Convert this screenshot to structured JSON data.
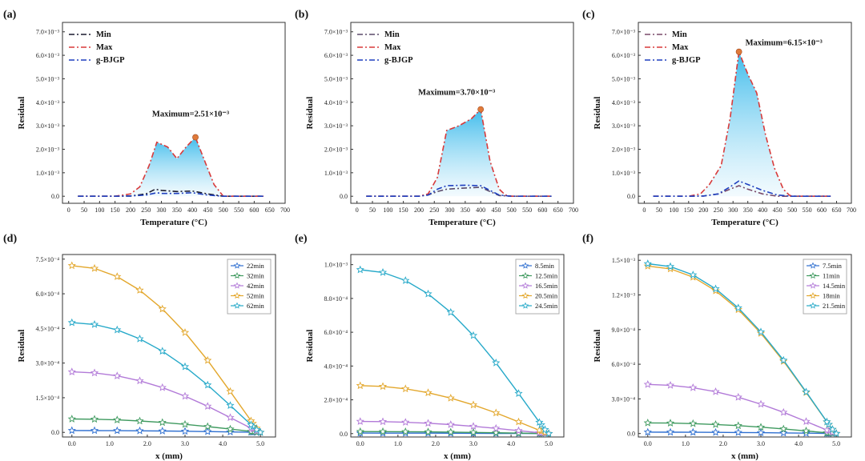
{
  "chart_data": [
    {
      "panel": "(a)",
      "type": "line",
      "xlabel": "Temperature (°C)",
      "ylabel": "Residual",
      "xlim": [
        -20,
        700
      ],
      "ylim": [
        -0.0003,
        0.0074
      ],
      "xticks": [
        "0",
        "50",
        "100",
        "150",
        "200",
        "250",
        "300",
        "350",
        "400",
        "450",
        "500",
        "550",
        "600",
        "650",
        "700"
      ],
      "yticks": [
        "0.0",
        "1.0×10⁻³",
        "2.0×10⁻³",
        "3.0×10⁻³",
        "4.0×10⁻³",
        "5.0×10⁻³",
        "6.0×10⁻³",
        "7.0×10⁻³"
      ],
      "legend_position": "top-left",
      "fill_between": true,
      "annotation": "Maximum=2.51×10⁻³",
      "max_point": [
        410,
        0.00251
      ],
      "series": [
        {
          "name": "Min",
          "color": "#1a1a2e",
          "dash": "7,3,2,3",
          "x": [
            30,
            100,
            150,
            200,
            250,
            280,
            300,
            350,
            400,
            450,
            500,
            550,
            600,
            630
          ],
          "y": [
            0,
            0,
            0,
            1e-05,
            0.0001,
            0.0003,
            0.00025,
            0.0002,
            0.00022,
            0.0001,
            0,
            0,
            0,
            0
          ]
        },
        {
          "name": "Max",
          "color": "#d83a3a",
          "dash": "7,3,2,3",
          "x": [
            30,
            100,
            150,
            200,
            230,
            260,
            285,
            320,
            350,
            380,
            410,
            440,
            470,
            500,
            550,
            600,
            630
          ],
          "y": [
            0,
            0,
            0,
            0.0001,
            0.0004,
            0.0013,
            0.0023,
            0.0021,
            0.0016,
            0.0021,
            0.00251,
            0.0015,
            0.0005,
            0,
            0,
            0,
            0
          ]
        },
        {
          "name": "g-BJGP",
          "color": "#1f3fbf",
          "dash": "7,3,2,3",
          "x": [
            30,
            100,
            150,
            200,
            250,
            285,
            300,
            350,
            400,
            450,
            500,
            550,
            600,
            630
          ],
          "y": [
            0,
            0,
            0,
            1e-05,
            5e-05,
            0.00015,
            0.00012,
            0.00012,
            0.00015,
            5e-05,
            0,
            0,
            0,
            0
          ]
        }
      ]
    },
    {
      "panel": "(b)",
      "type": "line",
      "xlabel": "Temperature (°C)",
      "ylabel": "Residual",
      "xlim": [
        -20,
        700
      ],
      "ylim": [
        -0.0003,
        0.0074
      ],
      "xticks": [
        "0",
        "50",
        "100",
        "150",
        "200",
        "250",
        "300",
        "350",
        "400",
        "450",
        "500",
        "550",
        "600",
        "650",
        "700"
      ],
      "yticks": [
        "0.0",
        "1.0×10⁻³",
        "2.0×10⁻³",
        "3.0×10⁻³",
        "4.0×10⁻³",
        "5.0×10⁻³",
        "6.0×10⁻³",
        "7.0×10⁻³"
      ],
      "legend_position": "top-left",
      "fill_between": true,
      "annotation": "Maximum=3.70×10⁻³",
      "max_point": [
        400,
        0.0037
      ],
      "series": [
        {
          "name": "Min",
          "color": "#5a4a6a",
          "dash": "7,3,2,3",
          "x": [
            30,
            100,
            150,
            200,
            230,
            260,
            290,
            350,
            400,
            430,
            460,
            500,
            550,
            600,
            630
          ],
          "y": [
            0,
            0,
            0,
            0,
            5e-05,
            0.0002,
            0.0003,
            0.00035,
            0.00038,
            0.0002,
            3e-05,
            0,
            0,
            0,
            0
          ]
        },
        {
          "name": "Max",
          "color": "#d83a3a",
          "dash": "7,3,2,3",
          "x": [
            30,
            100,
            150,
            200,
            230,
            260,
            290,
            330,
            370,
            400,
            430,
            460,
            480,
            500,
            550,
            600,
            630
          ],
          "y": [
            0,
            0,
            0,
            0,
            0.0001,
            0.0008,
            0.0028,
            0.003,
            0.0033,
            0.0037,
            0.0015,
            0.0003,
            5e-05,
            0,
            0,
            0,
            0
          ]
        },
        {
          "name": "g-BJGP",
          "color": "#1f3fbf",
          "dash": "7,3,2,3",
          "x": [
            30,
            100,
            150,
            200,
            230,
            260,
            290,
            350,
            400,
            430,
            460,
            500,
            550,
            600,
            630
          ],
          "y": [
            0,
            0,
            0,
            0,
            5e-05,
            0.0003,
            0.00045,
            0.00047,
            0.00045,
            0.00025,
            5e-05,
            0,
            0,
            0,
            0
          ]
        }
      ]
    },
    {
      "panel": "(c)",
      "type": "line",
      "xlabel": "Temperature (°C)",
      "ylabel": "Residual",
      "xlim": [
        -20,
        700
      ],
      "ylim": [
        -0.0003,
        0.0074
      ],
      "xticks": [
        "0",
        "50",
        "100",
        "150",
        "200",
        "250",
        "300",
        "350",
        "400",
        "450",
        "500",
        "550",
        "600",
        "650",
        "700"
      ],
      "yticks": [
        "0.0",
        "1.0×10⁻³",
        "2.0×10⁻³",
        "3.0×10⁻³",
        "4.0×10⁻³",
        "5.0×10⁻³",
        "6.0×10⁻³",
        "7.0×10⁻³"
      ],
      "legend_position": "top-left",
      "fill_between": true,
      "annotation": "Maximum=6.15×10⁻³",
      "max_point": [
        320,
        0.00615
      ],
      "series": [
        {
          "name": "Min",
          "color": "#7a4a6a",
          "dash": "7,3,2,3",
          "x": [
            30,
            100,
            150,
            200,
            250,
            290,
            320,
            350,
            400,
            450,
            500,
            550,
            600,
            630
          ],
          "y": [
            0,
            0,
            0,
            1e-05,
            0.0001,
            0.0003,
            0.00045,
            0.0003,
            0.0001,
            0,
            0,
            0,
            0,
            0
          ]
        },
        {
          "name": "Max",
          "color": "#d83a3a",
          "dash": "7,3,2,3",
          "x": [
            30,
            100,
            150,
            190,
            220,
            260,
            290,
            320,
            350,
            380,
            410,
            440,
            470,
            490,
            500,
            550,
            600,
            630
          ],
          "y": [
            0,
            0,
            0,
            0.0001,
            0.0005,
            0.0013,
            0.0033,
            0.00615,
            0.0052,
            0.0044,
            0.0026,
            0.0012,
            0.0003,
            5e-05,
            0,
            0,
            0,
            0
          ]
        },
        {
          "name": "g-BJGP",
          "color": "#1f3fbf",
          "dash": "7,3,2,3",
          "x": [
            30,
            100,
            150,
            200,
            250,
            290,
            320,
            350,
            400,
            450,
            500,
            550,
            600,
            630
          ],
          "y": [
            0,
            0,
            0,
            1e-05,
            0.0001,
            0.0004,
            0.00065,
            0.0005,
            0.00025,
            5e-05,
            0,
            0,
            0,
            0
          ]
        }
      ]
    },
    {
      "panel": "(d)",
      "type": "line",
      "xlabel": "x (mm)",
      "ylabel": "Residual",
      "xlim": [
        -0.25,
        5.4
      ],
      "ylim": [
        -2e-05,
        0.00077
      ],
      "xticks": [
        "0.0",
        "1.0",
        "2.0",
        "3.0",
        "4.0",
        "5.0"
      ],
      "yticks": [
        "0.0",
        "1.5×10⁻⁴",
        "3.0×10⁻⁴",
        "4.5×10⁻⁴",
        "6.0×10⁻⁴",
        "7.5×10⁻⁴"
      ],
      "legend_position": "top-right",
      "series": [
        {
          "name": "22min",
          "color": "#2e6fd0",
          "peak": 8e-06
        },
        {
          "name": "32min",
          "color": "#3f9a5f",
          "peak": 5.8e-05
        },
        {
          "name": "42min",
          "color": "#b27ad8",
          "peak": 0.000262
        },
        {
          "name": "52min",
          "color": "#e3a72c",
          "peak": 0.000722
        },
        {
          "name": "62min",
          "color": "#26a9c9",
          "peak": 0.000475
        }
      ]
    },
    {
      "panel": "(e)",
      "type": "line",
      "xlabel": "x (mm)",
      "ylabel": "Residual",
      "xlim": [
        -0.25,
        5.4
      ],
      "ylim": [
        -2e-05,
        0.00106
      ],
      "xticks": [
        "0.0",
        "1.0",
        "2.0",
        "3.0",
        "4.0",
        "5.0"
      ],
      "yticks": [
        "0.0",
        "2.0×10⁻⁴",
        "4.0×10⁻⁴",
        "6.0×10⁻⁴",
        "8.0×10⁻⁴",
        "1.0×10⁻³"
      ],
      "legend_position": "top-right",
      "series": [
        {
          "name": "8.5min",
          "color": "#2e6fd0",
          "peak": 3e-06
        },
        {
          "name": "12.5min",
          "color": "#3f9a5f",
          "peak": 1.2e-05
        },
        {
          "name": "16.5min",
          "color": "#b27ad8",
          "peak": 7.2e-05
        },
        {
          "name": "20.5min",
          "color": "#e3a72c",
          "peak": 0.000284
        },
        {
          "name": "24.5min",
          "color": "#26a9c9",
          "peak": 0.00097
        }
      ]
    },
    {
      "panel": "(f)",
      "type": "line",
      "xlabel": "x (mm)",
      "ylabel": "Residual",
      "xlim": [
        -0.25,
        5.4
      ],
      "ylim": [
        -3e-05,
        0.00155
      ],
      "xticks": [
        "0.0",
        "1.0",
        "2.0",
        "3.0",
        "4.0",
        "5.0"
      ],
      "yticks": [
        "0.0",
        "3.0×10⁻⁴",
        "6.0×10⁻⁴",
        "9.0×10⁻⁴",
        "1.2×10⁻³",
        "1.5×10⁻³"
      ],
      "legend_position": "top-right",
      "series": [
        {
          "name": "7.5min",
          "color": "#2e6fd0",
          "peak": 1.2e-05
        },
        {
          "name": "11min",
          "color": "#3f9a5f",
          "peak": 9.2e-05
        },
        {
          "name": "14.5min",
          "color": "#b27ad8",
          "peak": 0.000425
        },
        {
          "name": "18min",
          "color": "#e3a72c",
          "peak": 0.00145
        },
        {
          "name": "21.5min",
          "color": "#26a9c9",
          "peak": 0.00147
        }
      ]
    }
  ]
}
